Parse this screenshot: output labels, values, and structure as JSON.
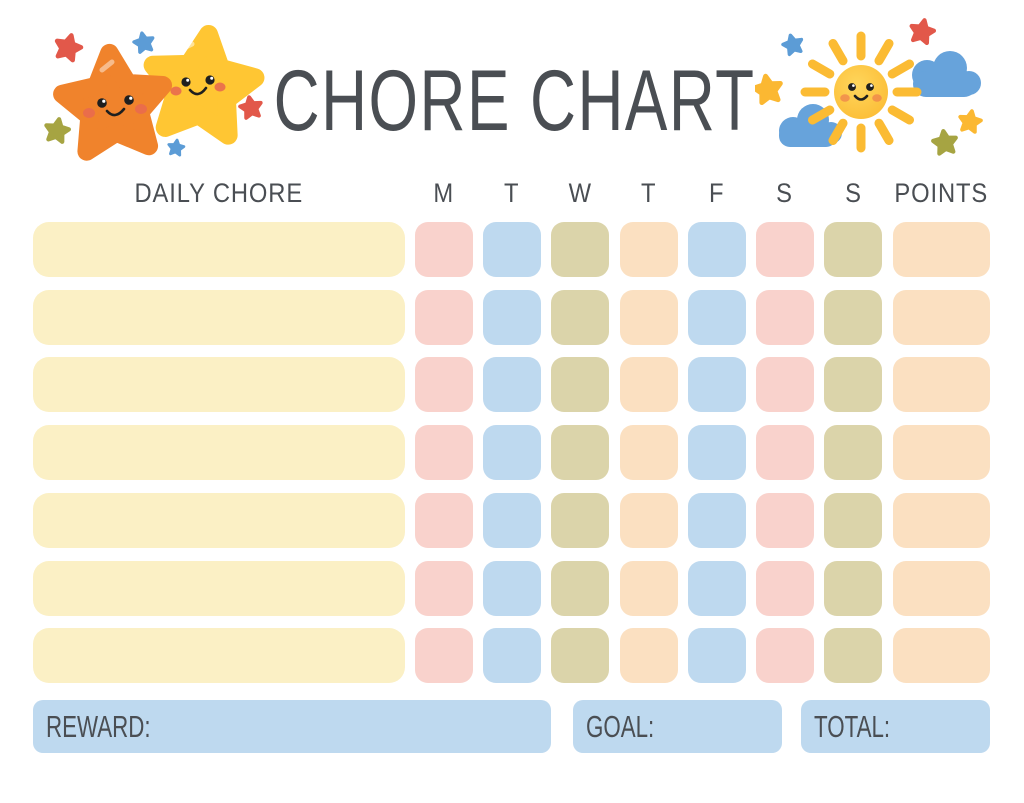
{
  "title": "CHORE CHART",
  "header": {
    "chore_label": "DAILY CHORE",
    "days": [
      "M",
      "T",
      "W",
      "T",
      "F",
      "S",
      "S"
    ],
    "points_label": "POINTS"
  },
  "grid": {
    "row_count": 7,
    "chore_bar_color": "#FBF0C5",
    "day_cell_colors": [
      "#F9D2CC",
      "#BED9EF",
      "#DBD4AA",
      "#FBE0C1",
      "#BED9EF",
      "#F9D2CC",
      "#DBD4AA"
    ],
    "points_cell_color": "#FBE0C1"
  },
  "footer": {
    "reward_label": "REWARD:",
    "goal_label": "GOAL:",
    "total_label": "TOTAL:",
    "box_color": "#BED9EF"
  },
  "colors": {
    "background": "#FFFFFF",
    "text": "#4A4E53",
    "orange_star": "#F0832C",
    "yellow_star": "#FFC633",
    "sun_disc": "#FCC53E",
    "sun_rays": "#FBBB33",
    "cloud": "#67A3DB",
    "small_star_red": "#E2584A",
    "small_star_blue": "#5C9CD6",
    "small_star_olive": "#A6A442",
    "small_star_yellow": "#FBB832",
    "cheek": "#E96A4E",
    "eye": "#1F1F1F"
  }
}
